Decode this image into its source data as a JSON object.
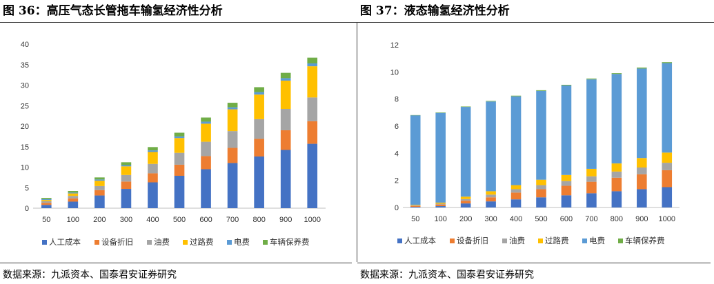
{
  "left": {
    "title": "图 36：高压气态长管拖车输氢经济性分析",
    "source": "数据来源：九派资本、国泰君安证券研究"
  },
  "right": {
    "title": "图 37：液态输氢经济性分析",
    "source": "数据来源：九派资本、国泰君安证券研究"
  },
  "chart_data": [
    {
      "type": "bar",
      "stacked": true,
      "categories": [
        "50",
        "100",
        "200",
        "300",
        "400",
        "500",
        "600",
        "700",
        "800",
        "900",
        "1000"
      ],
      "ylim": [
        0,
        40
      ],
      "yticks": [
        0,
        5,
        10,
        15,
        20,
        25,
        30,
        35,
        40
      ],
      "legend_position": "bottom",
      "grid": false,
      "series": [
        {
          "name": "人工成本",
          "color": "#4472C4",
          "values": [
            0.8,
            1.6,
            3.1,
            4.7,
            6.3,
            7.9,
            9.5,
            11.0,
            12.6,
            14.2,
            15.7
          ]
        },
        {
          "name": "设备折旧",
          "color": "#ED7D31",
          "values": [
            0.5,
            0.8,
            1.3,
            1.8,
            2.2,
            2.7,
            3.2,
            3.7,
            4.3,
            4.8,
            5.5
          ]
        },
        {
          "name": "油费",
          "color": "#A5A5A5",
          "values": [
            0.4,
            0.6,
            1.0,
            1.6,
            2.3,
            2.9,
            3.5,
            4.1,
            4.8,
            5.2,
            5.8
          ]
        },
        {
          "name": "过路费",
          "color": "#FFC000",
          "values": [
            0.3,
            0.6,
            1.3,
            2.1,
            2.9,
            3.6,
            4.4,
            5.3,
            6.0,
            6.9,
            7.6
          ]
        },
        {
          "name": "电费",
          "color": "#5B9BD5",
          "values": [
            0.2,
            0.2,
            0.3,
            0.3,
            0.4,
            0.4,
            0.5,
            0.5,
            0.6,
            0.6,
            0.7
          ]
        },
        {
          "name": "车辆保养费",
          "color": "#70AD47",
          "values": [
            0.3,
            0.4,
            0.5,
            0.7,
            0.8,
            0.9,
            1.0,
            1.1,
            1.2,
            1.3,
            1.4
          ]
        }
      ]
    },
    {
      "type": "bar",
      "stacked": true,
      "categories": [
        "50",
        "100",
        "200",
        "300",
        "400",
        "500",
        "600",
        "700",
        "800",
        "900",
        "1000"
      ],
      "ylim": [
        0,
        12
      ],
      "yticks": [
        0,
        2,
        4,
        6,
        8,
        10,
        12
      ],
      "legend_position": "bottom",
      "grid": false,
      "series": [
        {
          "name": "人工成本",
          "color": "#4472C4",
          "values": [
            0.05,
            0.1,
            0.3,
            0.45,
            0.6,
            0.75,
            0.9,
            1.05,
            1.2,
            1.35,
            1.5
          ]
        },
        {
          "name": "设备折旧",
          "color": "#ED7D31",
          "values": [
            0.07,
            0.12,
            0.2,
            0.3,
            0.5,
            0.6,
            0.7,
            0.85,
            1.0,
            1.1,
            1.25
          ]
        },
        {
          "name": "油费",
          "color": "#A5A5A5",
          "values": [
            0.04,
            0.06,
            0.12,
            0.2,
            0.25,
            0.3,
            0.35,
            0.4,
            0.45,
            0.5,
            0.55
          ]
        },
        {
          "name": "过路费",
          "color": "#FFC000",
          "values": [
            0.04,
            0.08,
            0.18,
            0.25,
            0.3,
            0.4,
            0.45,
            0.55,
            0.6,
            0.7,
            0.75
          ]
        },
        {
          "name": "电费",
          "color": "#5B9BD5",
          "values": [
            6.6,
            6.62,
            6.62,
            6.62,
            6.55,
            6.55,
            6.6,
            6.6,
            6.6,
            6.6,
            6.6
          ]
        },
        {
          "name": "车辆保养费",
          "color": "#70AD47",
          "values": [
            0.02,
            0.03,
            0.03,
            0.04,
            0.05,
            0.05,
            0.05,
            0.06,
            0.06,
            0.07,
            0.07
          ]
        }
      ]
    }
  ]
}
